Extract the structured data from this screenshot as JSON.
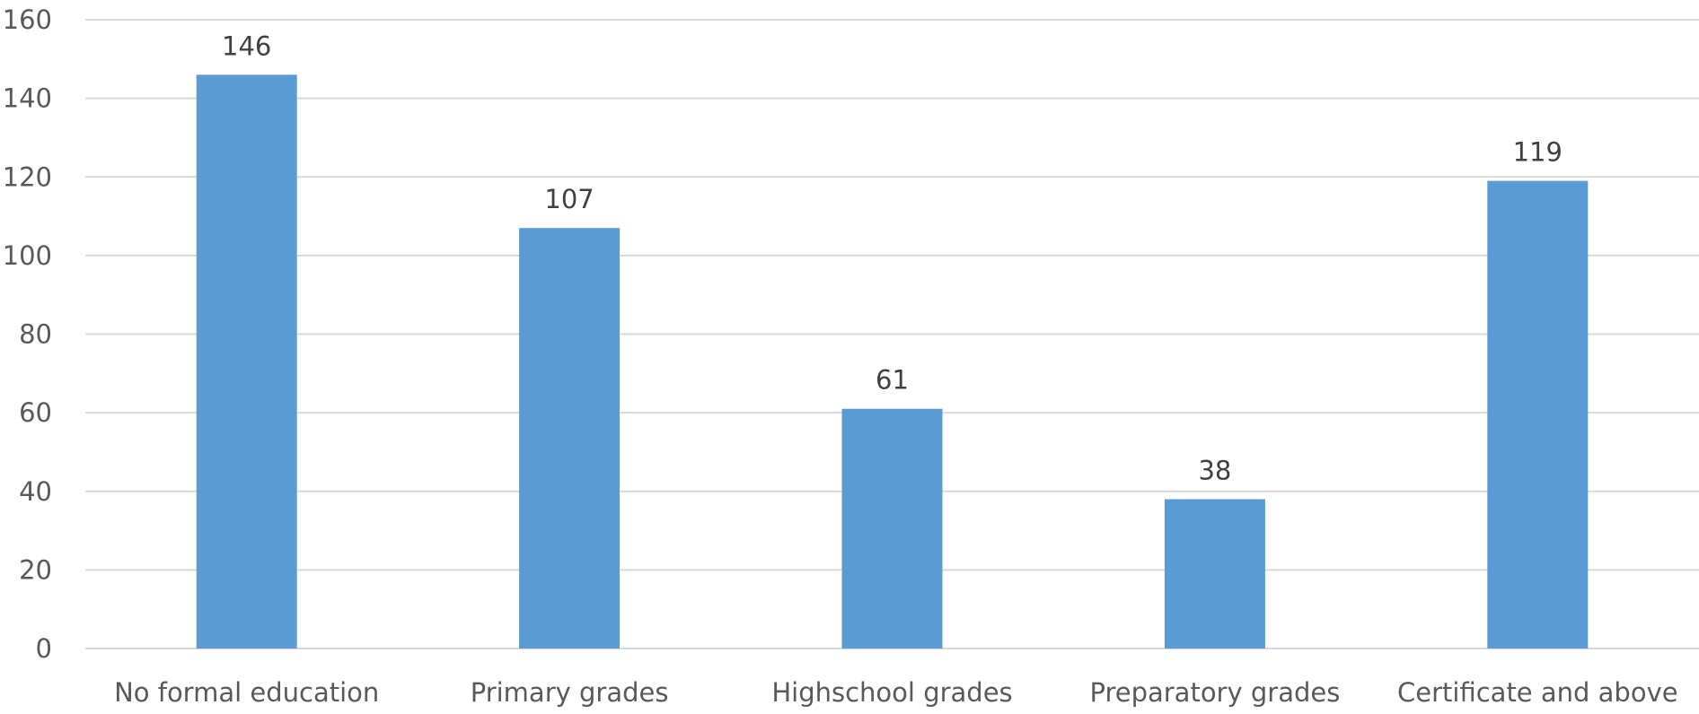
{
  "chart_data": {
    "type": "bar",
    "title": "",
    "xlabel": "",
    "ylabel": "",
    "categories": [
      "No formal education",
      "Primary grades",
      "Highschool grades",
      "Preparatory grades",
      "Certificate and above"
    ],
    "values": [
      146,
      107,
      61,
      38,
      119
    ],
    "data_labels": [
      "146",
      "107",
      "61",
      "38",
      "119"
    ],
    "ylim": [
      0,
      160
    ],
    "yticks": [
      0,
      20,
      40,
      60,
      80,
      100,
      120,
      140,
      160
    ],
    "ytick_labels": [
      "0",
      "20",
      "40",
      "60",
      "80",
      "100",
      "120",
      "140",
      "160"
    ],
    "grid": true,
    "legend": "none",
    "colors": {
      "bar": "#5b9bd5",
      "gridline": "#d9d9d9",
      "axis_text": "#595959",
      "data_label_text": "#404040"
    }
  }
}
